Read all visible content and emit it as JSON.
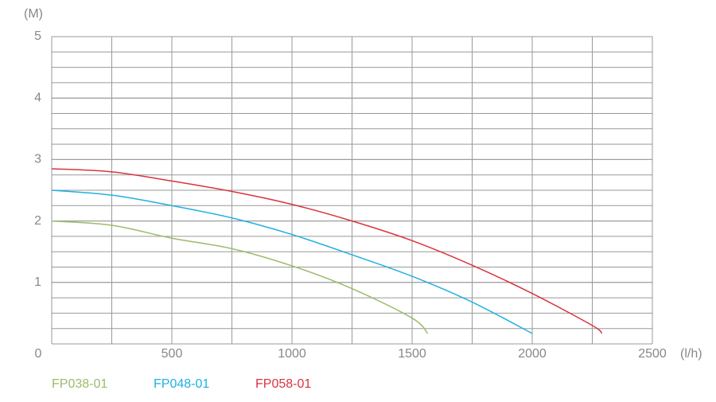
{
  "chart_data": {
    "type": "line",
    "y_unit_label": "(M)",
    "x_unit_label": "(l/h)",
    "xlim": [
      0,
      2500
    ],
    "xticks": [
      0,
      500,
      1000,
      1500,
      2000,
      2500
    ],
    "ylim": [
      0,
      5
    ],
    "yticks": [
      1,
      2,
      3,
      4,
      5
    ],
    "grid": true,
    "x_minor_step": 250,
    "y_minor_step": 0.25,
    "series": [
      {
        "name": "FP038-01",
        "color": "#9bbb6a",
        "x": [
          0,
          250,
          500,
          750,
          1000,
          1250,
          1500,
          1565
        ],
        "values": [
          2.0,
          1.93,
          1.72,
          1.55,
          1.27,
          0.9,
          0.42,
          0.17
        ]
      },
      {
        "name": "FP048-01",
        "color": "#1fb0e0",
        "x": [
          0,
          250,
          500,
          750,
          1000,
          1250,
          1500,
          1750,
          2000
        ],
        "values": [
          2.5,
          2.42,
          2.25,
          2.05,
          1.78,
          1.45,
          1.1,
          0.68,
          0.17
        ]
      },
      {
        "name": "FP058-01",
        "color": "#d9343f",
        "x": [
          0,
          250,
          500,
          750,
          1000,
          1250,
          1500,
          1750,
          2000,
          2250,
          2290
        ],
        "values": [
          2.85,
          2.8,
          2.65,
          2.48,
          2.27,
          2.0,
          1.68,
          1.28,
          0.82,
          0.3,
          0.17
        ]
      }
    ]
  }
}
